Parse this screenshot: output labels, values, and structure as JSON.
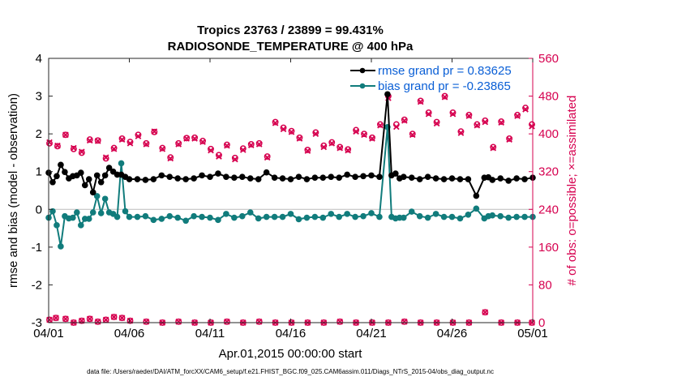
{
  "chart_data": {
    "type": "line",
    "title": "Tropics 23763 / 23899 = 99.431%",
    "subtitle": "RADIOSONDE_TEMPERATURE @ 400 hPa",
    "xlabel": "Apr.01,2015 00:00:00 start",
    "ylabel_left": "rmse and bias (model - observation)",
    "ylabel_right": "# of obs: o=possible; ×=assimilated",
    "footer": "data file: /Users/raeder/DAI/ATM_forcXX/CAM6_setup/f.e21.FHIST_BGC.f09_025.CAM6assim.011/Diags_NTrS_2015-04/obs_diag_output.nc",
    "x_ticks": [
      0,
      5,
      10,
      15,
      20,
      25,
      30
    ],
    "x_tick_labels": [
      "04/01",
      "04/06",
      "04/11",
      "04/16",
      "04/21",
      "04/26",
      "05/01"
    ],
    "xlim": [
      0,
      30
    ],
    "ylim_left": [
      -3,
      4
    ],
    "y_ticks_left": [
      -3,
      -2,
      -1,
      0,
      1,
      2,
      3,
      4
    ],
    "ylim_right": [
      0,
      560
    ],
    "y_ticks_right": [
      0,
      80,
      160,
      240,
      320,
      400,
      480,
      560
    ],
    "colors": {
      "rmse": "#000000",
      "bias": "#117c7c",
      "obs": "#d6004f",
      "right_axis": "#d6004f",
      "legend_text": "#0a5fd6",
      "zero_line": "#bbbbbb"
    },
    "series": [
      {
        "name": "rmse",
        "legend": "rmse grand pr = 0.83625",
        "axis": "left",
        "x": [
          0,
          0.25,
          0.5,
          0.75,
          1,
          1.25,
          1.5,
          1.75,
          2,
          2.25,
          2.5,
          2.75,
          3,
          3.25,
          3.5,
          3.75,
          4,
          4.25,
          4.5,
          4.75,
          5,
          5.5,
          6,
          6.5,
          7,
          7.5,
          8,
          8.5,
          9,
          9.5,
          10,
          10.5,
          11,
          11.5,
          12,
          12.5,
          13,
          13.5,
          14,
          14.5,
          15,
          15.5,
          16,
          16.5,
          17,
          17.5,
          18,
          18.5,
          19,
          19.5,
          20,
          20.5,
          21,
          21.25,
          21.5,
          21.75,
          22,
          22.5,
          23,
          23.5,
          24,
          24.5,
          25,
          25.5,
          26,
          26.5,
          27,
          27.25,
          27.5,
          28,
          28.5,
          29,
          29.5,
          30
        ],
        "values": [
          0.97,
          0.72,
          0.88,
          1.18,
          0.99,
          0.82,
          0.88,
          0.9,
          0.97,
          0.64,
          0.8,
          0.45,
          0.9,
          0.72,
          0.9,
          1.1,
          1.0,
          0.92,
          0.92,
          0.86,
          0.8,
          0.8,
          0.78,
          0.8,
          0.9,
          0.86,
          0.82,
          0.8,
          0.82,
          0.9,
          0.86,
          0.95,
          0.86,
          0.84,
          0.86,
          0.82,
          0.8,
          0.98,
          0.84,
          0.82,
          0.8,
          0.86,
          0.8,
          0.84,
          0.84,
          0.86,
          0.84,
          0.92,
          0.86,
          0.88,
          0.9,
          0.86,
          3.05,
          0.9,
          0.95,
          0.82,
          0.86,
          0.84,
          0.8,
          0.86,
          0.82,
          0.8,
          0.82,
          0.8,
          0.8,
          0.36,
          0.84,
          0.85,
          0.78,
          0.82,
          0.76,
          0.82,
          0.8,
          0.84
        ]
      },
      {
        "name": "bias",
        "legend": "bias grand pr = -0.23865",
        "axis": "left",
        "x": [
          0,
          0.25,
          0.5,
          0.75,
          1,
          1.25,
          1.5,
          1.75,
          2,
          2.25,
          2.5,
          2.75,
          3,
          3.25,
          3.5,
          3.75,
          4,
          4.25,
          4.5,
          4.75,
          5,
          5.5,
          6,
          6.5,
          7,
          7.5,
          8,
          8.5,
          9,
          9.5,
          10,
          10.5,
          11,
          11.5,
          12,
          12.5,
          13,
          13.5,
          14,
          14.5,
          15,
          15.5,
          16,
          16.5,
          17,
          17.5,
          18,
          18.5,
          19,
          19.5,
          20,
          20.5,
          21,
          21.25,
          21.5,
          21.75,
          22,
          22.5,
          23,
          23.5,
          24,
          24.5,
          25,
          25.5,
          26,
          26.5,
          27,
          27.25,
          27.5,
          28,
          28.5,
          29,
          29.5,
          30
        ],
        "values": [
          -0.22,
          -0.05,
          -0.42,
          -0.98,
          -0.18,
          -0.24,
          -0.22,
          -0.08,
          -0.42,
          -0.25,
          -0.25,
          -0.08,
          0.35,
          -0.1,
          0.28,
          -0.08,
          -0.12,
          -0.2,
          1.22,
          -0.05,
          -0.2,
          -0.2,
          -0.18,
          -0.28,
          -0.25,
          -0.18,
          -0.22,
          -0.3,
          -0.18,
          -0.2,
          -0.22,
          -0.28,
          -0.12,
          -0.22,
          -0.18,
          -0.08,
          -0.24,
          -0.2,
          -0.2,
          -0.2,
          -0.12,
          -0.26,
          -0.22,
          -0.2,
          -0.22,
          -0.12,
          -0.2,
          -0.12,
          -0.2,
          -0.18,
          -0.1,
          -0.2,
          2.18,
          -0.2,
          -0.24,
          -0.22,
          -0.22,
          -0.06,
          -0.18,
          -0.22,
          -0.12,
          -0.2,
          -0.2,
          -0.24,
          -0.14,
          0.02,
          -0.24,
          -0.18,
          -0.16,
          -0.18,
          -0.22,
          -0.2,
          -0.2,
          -0.2
        ]
      },
      {
        "name": "obs_possible",
        "marker": "o",
        "axis": "right",
        "x": [
          0.05,
          0.55,
          1.05,
          1.55,
          2.05,
          2.55,
          3.05,
          3.55,
          4.05,
          4.55,
          5.05,
          5.55,
          6.05,
          6.55,
          7.05,
          7.55,
          8.05,
          8.55,
          9.05,
          9.55,
          10.05,
          10.55,
          11.05,
          11.55,
          12.05,
          12.55,
          13.05,
          13.55,
          14.05,
          14.55,
          15.05,
          15.55,
          16.05,
          16.55,
          17.05,
          17.55,
          18.05,
          18.55,
          19.05,
          19.55,
          20.05,
          20.55,
          21.05,
          21.55,
          22.05,
          22.55,
          23.05,
          23.55,
          24.05,
          24.55,
          25.05,
          25.55,
          26.05,
          26.55,
          27.05,
          27.55,
          28.05,
          28.55,
          29.05,
          29.55,
          29.95
        ],
        "values": [
          380,
          374,
          398,
          368,
          360,
          388,
          386,
          348,
          370,
          390,
          383,
          398,
          380,
          404,
          370,
          350,
          380,
          391,
          392,
          385,
          368,
          355,
          377,
          349,
          369,
          378,
          380,
          352,
          425,
          413,
          406,
          392,
          366,
          403,
          375,
          382,
          372,
          367,
          408,
          400,
          392,
          420,
          480,
          420,
          430,
          400,
          470,
          445,
          425,
          480,
          445,
          405,
          440,
          420,
          428,
          372,
          426,
          390,
          440,
          455,
          420
        ],
        "note": "o markers closely overlap the assimilated counts"
      },
      {
        "name": "obs_assimilated",
        "marker": "x",
        "axis": "right",
        "x": [
          0.05,
          0.55,
          1.05,
          1.55,
          2.05,
          2.55,
          3.05,
          3.55,
          4.05,
          4.55,
          5.05,
          5.55,
          6.05,
          6.55,
          7.05,
          7.55,
          8.05,
          8.55,
          9.05,
          9.55,
          10.05,
          10.55,
          11.05,
          11.55,
          12.05,
          12.55,
          13.05,
          13.55,
          14.05,
          14.55,
          15.05,
          15.55,
          16.05,
          16.55,
          17.05,
          17.55,
          18.05,
          18.55,
          19.05,
          19.55,
          20.05,
          20.55,
          21.05,
          21.55,
          22.05,
          22.55,
          23.05,
          23.55,
          24.05,
          24.55,
          25.05,
          25.55,
          26.05,
          26.55,
          27.05,
          27.55,
          28.05,
          28.55,
          29.05,
          29.55,
          29.95
        ],
        "values": [
          382,
          375,
          398,
          370,
          362,
          386,
          385,
          350,
          368,
          388,
          380,
          395,
          378,
          405,
          368,
          348,
          378,
          390,
          390,
          383,
          365,
          352,
          375,
          346,
          366,
          376,
          378,
          350,
          423,
          410,
          404,
          390,
          364,
          400,
          372,
          380,
          370,
          365,
          405,
          398,
          390,
          418,
          476,
          415,
          428,
          398,
          468,
          442,
          422,
          478,
          442,
          402,
          438,
          418,
          425,
          370,
          424,
          388,
          438,
          452,
          416
        ]
      },
      {
        "name": "obs_possible_low",
        "marker": "o",
        "axis": "right",
        "x": [
          0.05,
          0.45,
          1.05,
          1.55,
          2.05,
          2.55,
          3.05,
          3.55,
          4.05,
          4.55,
          5.05,
          6.05,
          7.05,
          8.05,
          9.05,
          10.05,
          11.05,
          12.05,
          13.05,
          14.05,
          15.05,
          16.05,
          17.05,
          18.05,
          19.05,
          20.05,
          21.05,
          22.05,
          23.05,
          24.05,
          25.05,
          26.05,
          27.05,
          28.05,
          29.05,
          29.95
        ],
        "values": [
          6,
          10,
          8,
          0,
          4,
          8,
          2,
          6,
          12,
          10,
          4,
          2,
          0,
          2,
          0,
          0,
          2,
          0,
          2,
          0,
          0,
          0,
          0,
          2,
          0,
          0,
          0,
          2,
          0,
          0,
          0,
          0,
          22,
          0,
          0,
          0
        ]
      }
    ],
    "legend": [
      {
        "label": "rmse grand pr = 0.83625",
        "series": "rmse"
      },
      {
        "label": "bias grand pr = -0.23865",
        "series": "bias"
      }
    ],
    "legend_position": "top-right"
  }
}
